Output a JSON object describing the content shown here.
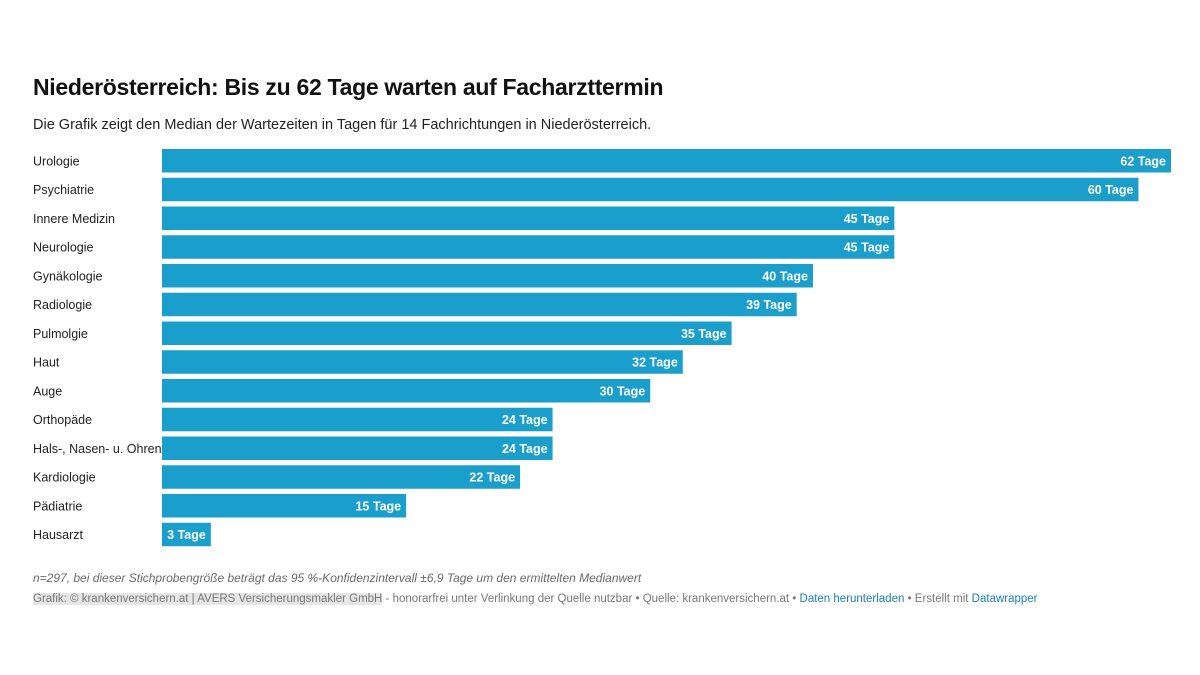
{
  "title": "Niederösterreich: Bis zu 62 Tage warten auf Facharzttermin",
  "subtitle": "Die Grafik zeigt den Median der Wartezeiten in Tagen für 14 Fachrichtungen in Niederösterreich.",
  "note": "n=297, bei dieser Stichprobengröße beträgt das 95 %-Konfidenzintervall ±6,9 Tage um den ermittelten Medianwert",
  "footer": {
    "credit": "Grafik: © krankenversichern.at | AVERS Versicherungsmakler GmbH",
    "license": " - honorarfrei unter Verlinkung der Quelle nutzbar • Quelle: krankenversichern.at • ",
    "download": "Daten herunterladen",
    "made_with": " • Erstellt mit ",
    "tool": "Datawrapper"
  },
  "colors": {
    "bar": "#1a9fcd",
    "label_on_bar": "#ffffff"
  },
  "chart_data": {
    "type": "bar",
    "orientation": "horizontal",
    "categories": [
      "Urologie",
      "Psychiatrie",
      "Innere Medizin",
      "Neurologie",
      "Gynäkologie",
      "Radiologie",
      "Pulmolgie",
      "Haut",
      "Auge",
      "Orthopäde",
      "Hals-, Nasen- u. Ohren",
      "Kardiologie",
      "Pädiatrie",
      "Hausarzt"
    ],
    "values": [
      62,
      60,
      45,
      45,
      40,
      39,
      35,
      32,
      30,
      24,
      24,
      22,
      15,
      3
    ],
    "value_labels": [
      "62 Tage",
      "60 Tage",
      "45 Tage",
      "45 Tage",
      "40 Tage",
      "39 Tage",
      "35 Tage",
      "32 Tage",
      "30 Tage",
      "24 Tage",
      "24 Tage",
      "22 Tage",
      "15 Tage",
      "3 Tage"
    ],
    "xlim": [
      0,
      62
    ],
    "grid": false
  }
}
